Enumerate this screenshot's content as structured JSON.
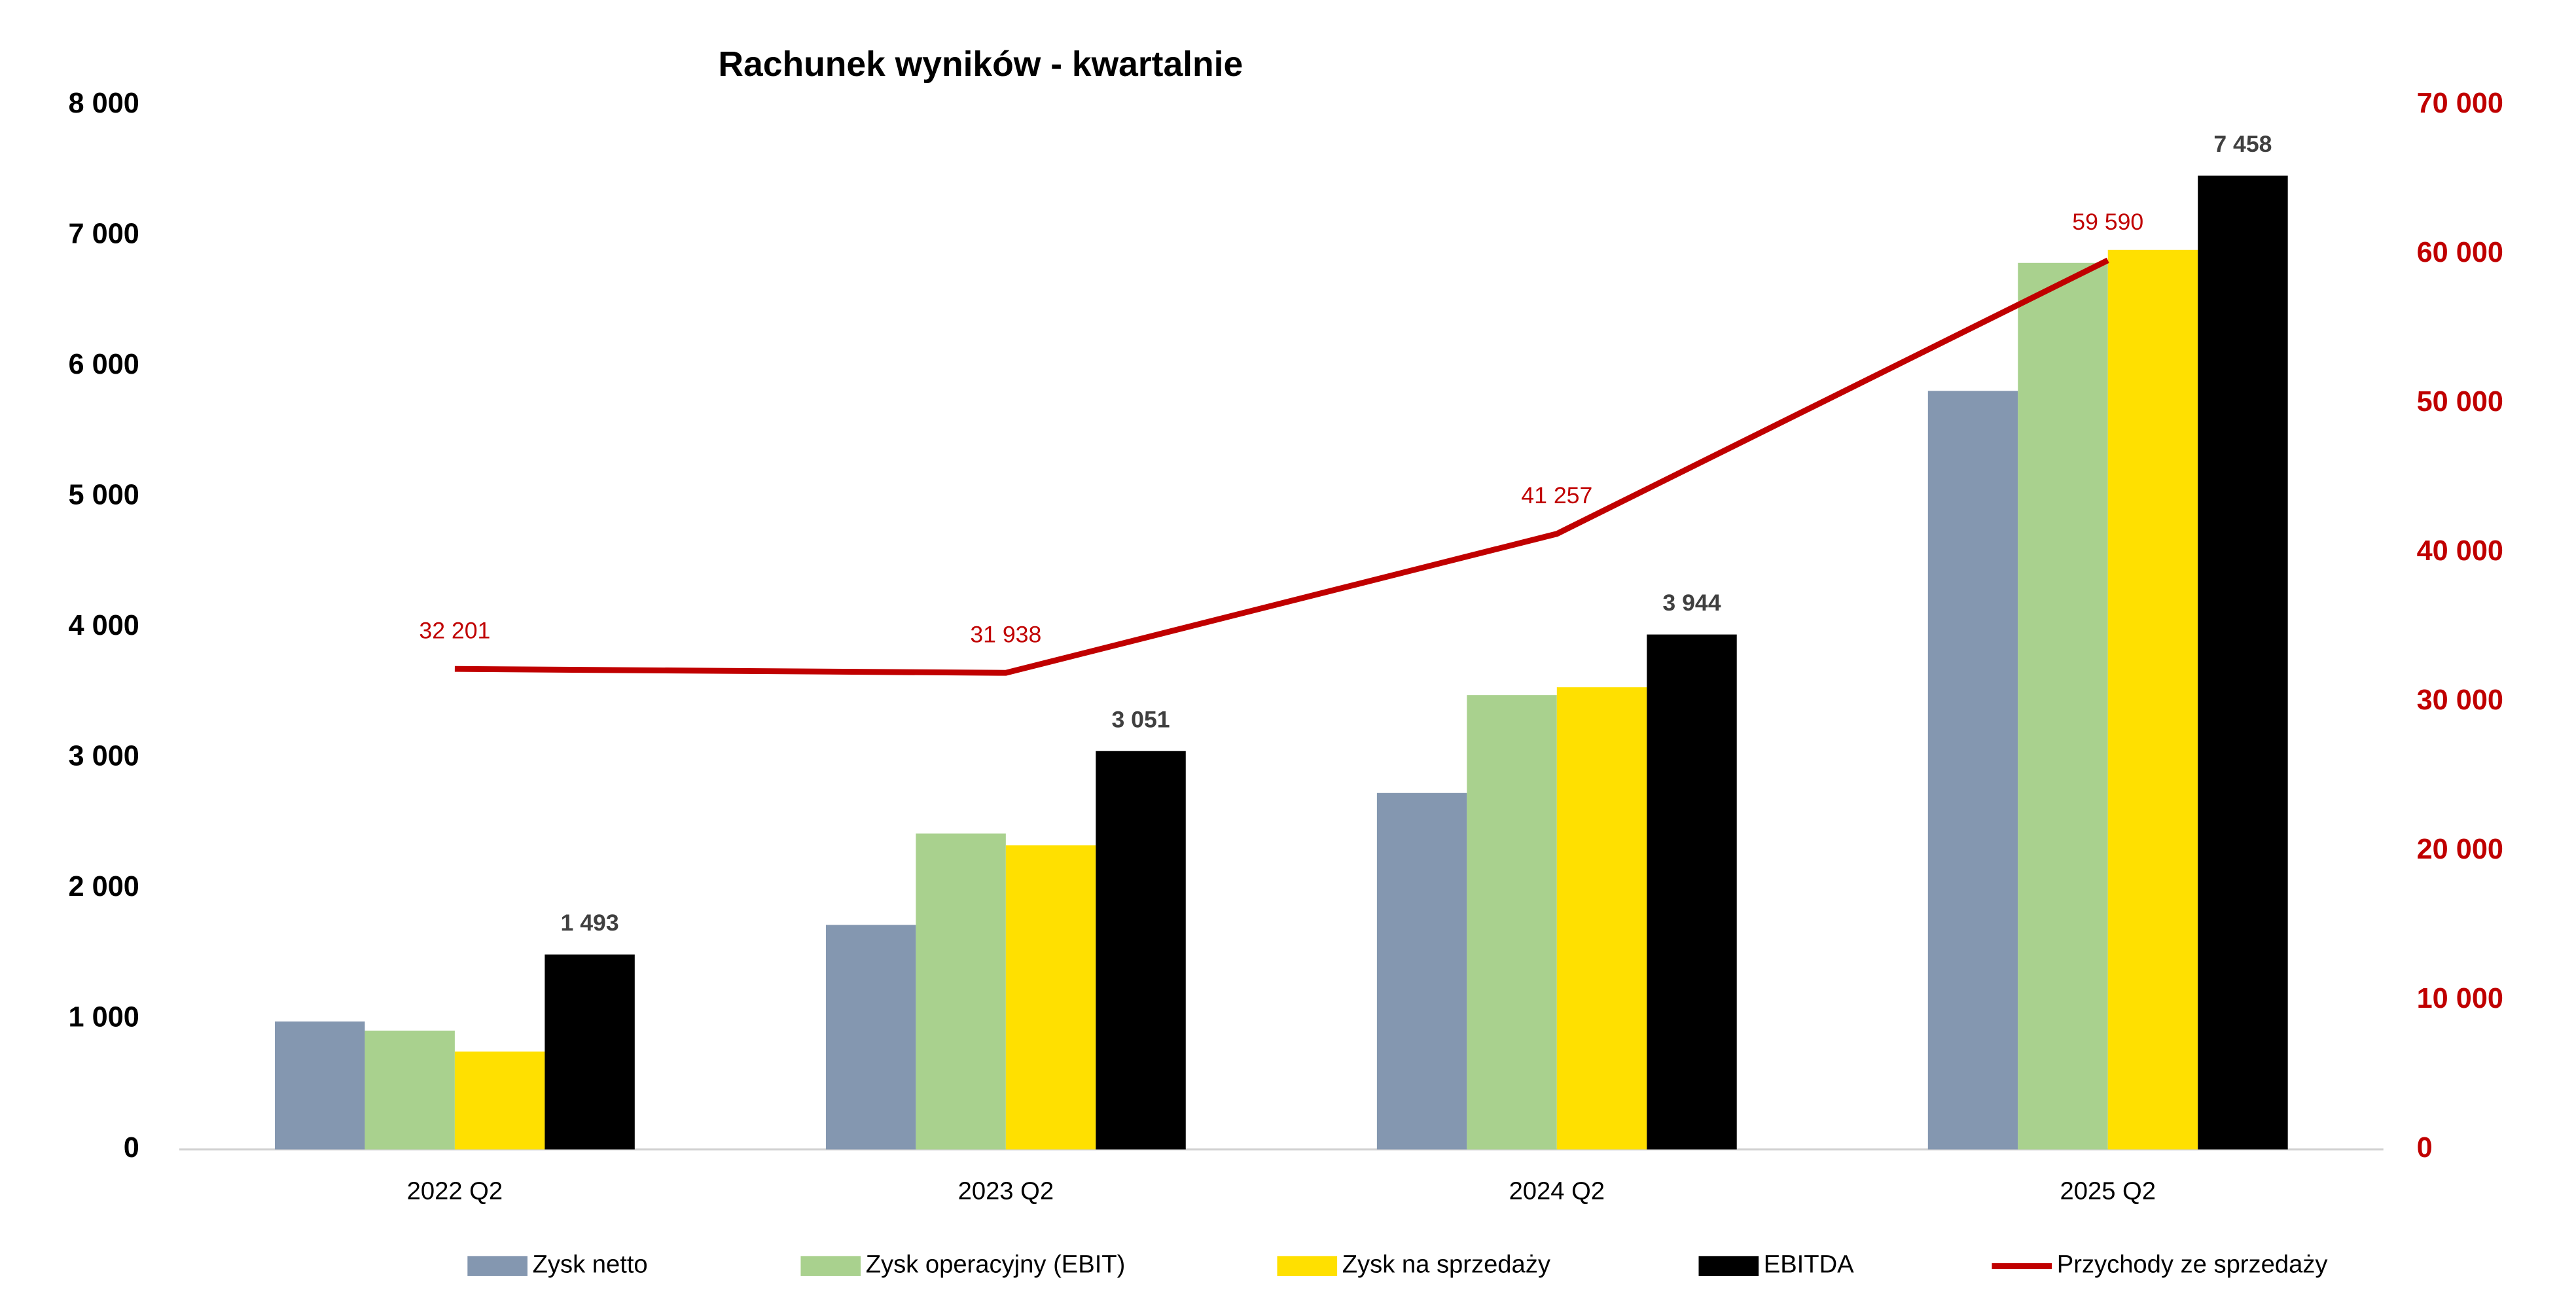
{
  "chart_data": {
    "type": "bar",
    "title": "Rachunek wyników - kwartalnie",
    "categories": [
      "2022 Q2",
      "2023 Q2",
      "2024 Q2",
      "2025 Q2"
    ],
    "series": [
      {
        "name": "Zysk netto",
        "color": "#8497b0",
        "values": [
          980,
          1720,
          2730,
          5810
        ]
      },
      {
        "name": "Zysk operacyjny (EBIT)",
        "color": "#a9d18e",
        "values": [
          910,
          2420,
          3480,
          6790
        ]
      },
      {
        "name": "Zysk na sprzedaży",
        "color": "#ffe000",
        "values": [
          750,
          2330,
          3540,
          6890
        ]
      },
      {
        "name": "EBITDA",
        "color": "#000000",
        "values": [
          1493,
          3051,
          3944,
          7458
        ],
        "value_labels": [
          "1 493",
          "3 051",
          "3 944",
          "7 458"
        ]
      },
      {
        "name": "Przychody ze sprzedaży",
        "color": "#c00000",
        "type": "line",
        "axis": "y2",
        "values": [
          32201,
          31938,
          41257,
          59590
        ],
        "value_labels": [
          "32 201",
          "31 938",
          "41 257",
          "59 590"
        ]
      }
    ],
    "ylim": [
      0,
      8000
    ],
    "yticks": [
      0,
      {
        "value": 1000,
        "label": "1 000"
      },
      {
        "value": 2000,
        "label": "2 000"
      },
      {
        "value": 3000,
        "label": "3 000"
      },
      {
        "value": 4000,
        "label": "4 000"
      },
      {
        "value": 5000,
        "label": "5 000"
      },
      {
        "value": 6000,
        "label": "6 000"
      },
      {
        "value": 7000,
        "label": "7 000"
      },
      {
        "value": 8000,
        "label": "8 000"
      }
    ],
    "y2lim": [
      0,
      70000
    ],
    "y2ticks": [
      0,
      {
        "value": 10000,
        "label": "10 000"
      },
      {
        "value": 20000,
        "label": "20 000"
      },
      {
        "value": 30000,
        "label": "30 000"
      },
      {
        "value": 40000,
        "label": "40 000"
      },
      {
        "value": 50000,
        "label": "50 000"
      },
      {
        "value": 60000,
        "label": "60 000"
      },
      {
        "value": 70000,
        "label": "70 000"
      }
    ],
    "grid": false,
    "legend": "bottom"
  }
}
